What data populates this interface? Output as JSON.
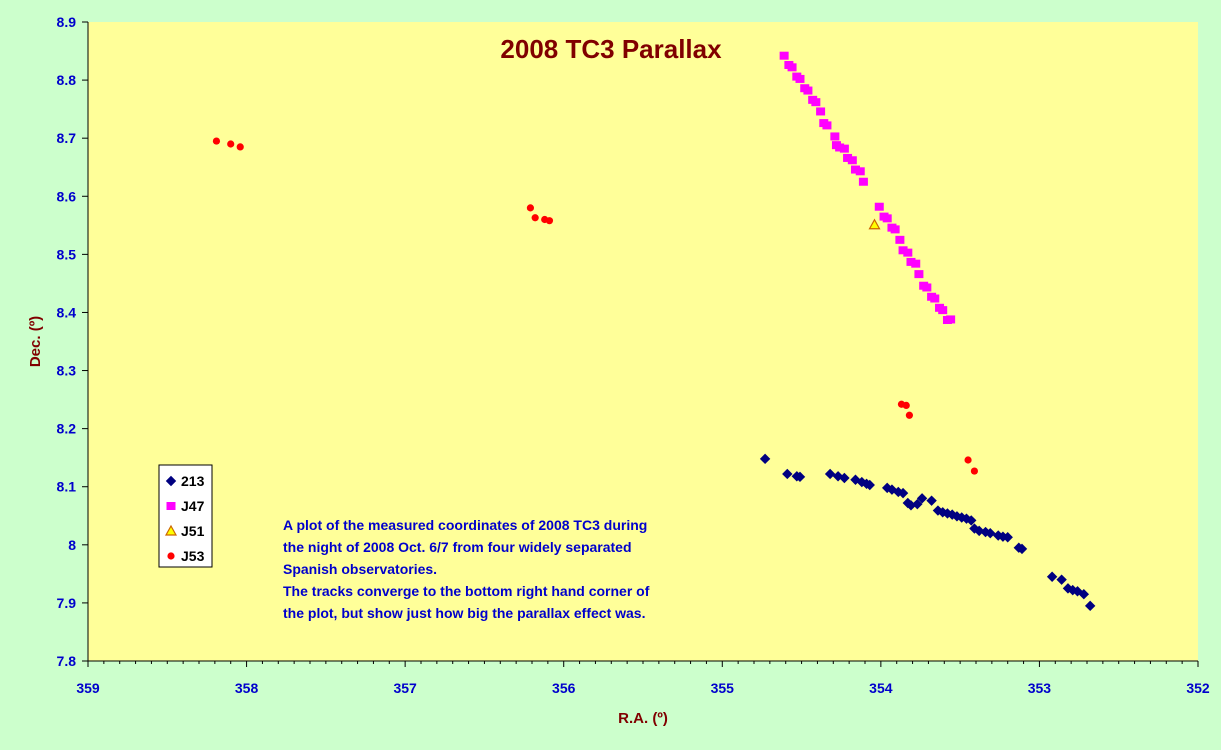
{
  "chart_data": {
    "type": "scatter",
    "title": "2008 TC3 Parallax",
    "xlabel": "R.A. (º)",
    "ylabel": "Dec. (º)",
    "xlim": [
      359,
      352
    ],
    "ylim": [
      7.8,
      8.9
    ],
    "x_reversed": true,
    "x_ticks": [
      "359",
      "358",
      "357",
      "356",
      "355",
      "354",
      "353",
      "352"
    ],
    "y_ticks": [
      "7.8",
      "7.9",
      "8",
      "8.1",
      "8.2",
      "8.3",
      "8.4",
      "8.5",
      "8.6",
      "8.7",
      "8.8",
      "8.9"
    ],
    "grid": false,
    "legend_position": "bottom-left",
    "colors": {
      "plot_bg": "#ffff99",
      "page_bg": "#ccffcc",
      "s213": "#000080",
      "sJ47": "#ff00ff",
      "sJ51": "#ffff00",
      "sJ53": "#ff0000"
    },
    "annotation": [
      "A plot of the measured coordinates of 2008 TC3 during",
      "the night of 2008 Oct. 6/7 from four widely separated",
      "Spanish observatories.",
      "The tracks converge to the bottom right hand corner of",
      "the plot, but show just how big the parallax effect was."
    ],
    "series": [
      {
        "name": "213",
        "marker": "diamond",
        "x": [
          354.73,
          354.59,
          354.53,
          354.51,
          354.32,
          354.27,
          354.23,
          354.16,
          354.12,
          354.09,
          354.07,
          353.96,
          353.93,
          353.89,
          353.86,
          353.83,
          353.81,
          353.77,
          353.74,
          353.68,
          353.64,
          353.61,
          353.58,
          353.55,
          353.52,
          353.49,
          353.46,
          353.43,
          353.41,
          353.38,
          353.34,
          353.31,
          353.26,
          353.23,
          353.2,
          353.13,
          353.11,
          352.92,
          352.86,
          352.82,
          352.79,
          352.76,
          352.72,
          352.68
        ],
        "y": [
          8.148,
          8.122,
          8.118,
          8.117,
          8.122,
          8.118,
          8.115,
          8.112,
          8.108,
          8.105,
          8.103,
          8.098,
          8.095,
          8.091,
          8.089,
          8.072,
          8.068,
          8.07,
          8.08,
          8.076,
          8.059,
          8.056,
          8.054,
          8.052,
          8.049,
          8.047,
          8.045,
          8.042,
          8.028,
          8.024,
          8.022,
          8.02,
          8.016,
          8.014,
          8.013,
          7.995,
          7.993,
          7.945,
          7.94,
          7.925,
          7.922,
          7.92,
          7.915,
          7.895
        ]
      },
      {
        "name": "J47",
        "marker": "square",
        "x": [
          354.61,
          354.58,
          354.56,
          354.53,
          354.51,
          354.48,
          354.46,
          354.43,
          354.41,
          354.38,
          354.36,
          354.34,
          354.29,
          354.28,
          354.26,
          354.23,
          354.21,
          354.18,
          354.16,
          354.13,
          354.11,
          354.01,
          353.98,
          353.96,
          353.93,
          353.91,
          353.88,
          353.86,
          353.83,
          353.81,
          353.78,
          353.76,
          353.73,
          353.71,
          353.68,
          353.66,
          353.63,
          353.61,
          353.58,
          353.56
        ],
        "y": [
          8.842,
          8.826,
          8.822,
          8.806,
          8.802,
          8.786,
          8.782,
          8.766,
          8.762,
          8.746,
          8.726,
          8.722,
          8.703,
          8.688,
          8.684,
          8.682,
          8.666,
          8.662,
          8.646,
          8.643,
          8.625,
          8.582,
          8.565,
          8.562,
          8.546,
          8.543,
          8.525,
          8.507,
          8.503,
          8.487,
          8.484,
          8.466,
          8.446,
          8.443,
          8.427,
          8.424,
          8.408,
          8.404,
          8.387,
          8.388
        ]
      },
      {
        "name": "J51",
        "marker": "triangle",
        "x": [
          354.04
        ],
        "y": [
          8.551
        ]
      },
      {
        "name": "J53",
        "marker": "circle",
        "x": [
          358.19,
          358.1,
          358.04,
          356.21,
          356.18,
          356.12,
          356.09,
          353.87,
          353.84,
          353.82,
          353.45,
          353.41
        ],
        "y": [
          8.695,
          8.69,
          8.685,
          8.58,
          8.563,
          8.56,
          8.558,
          8.242,
          8.24,
          8.223,
          8.146,
          8.127
        ]
      }
    ]
  }
}
